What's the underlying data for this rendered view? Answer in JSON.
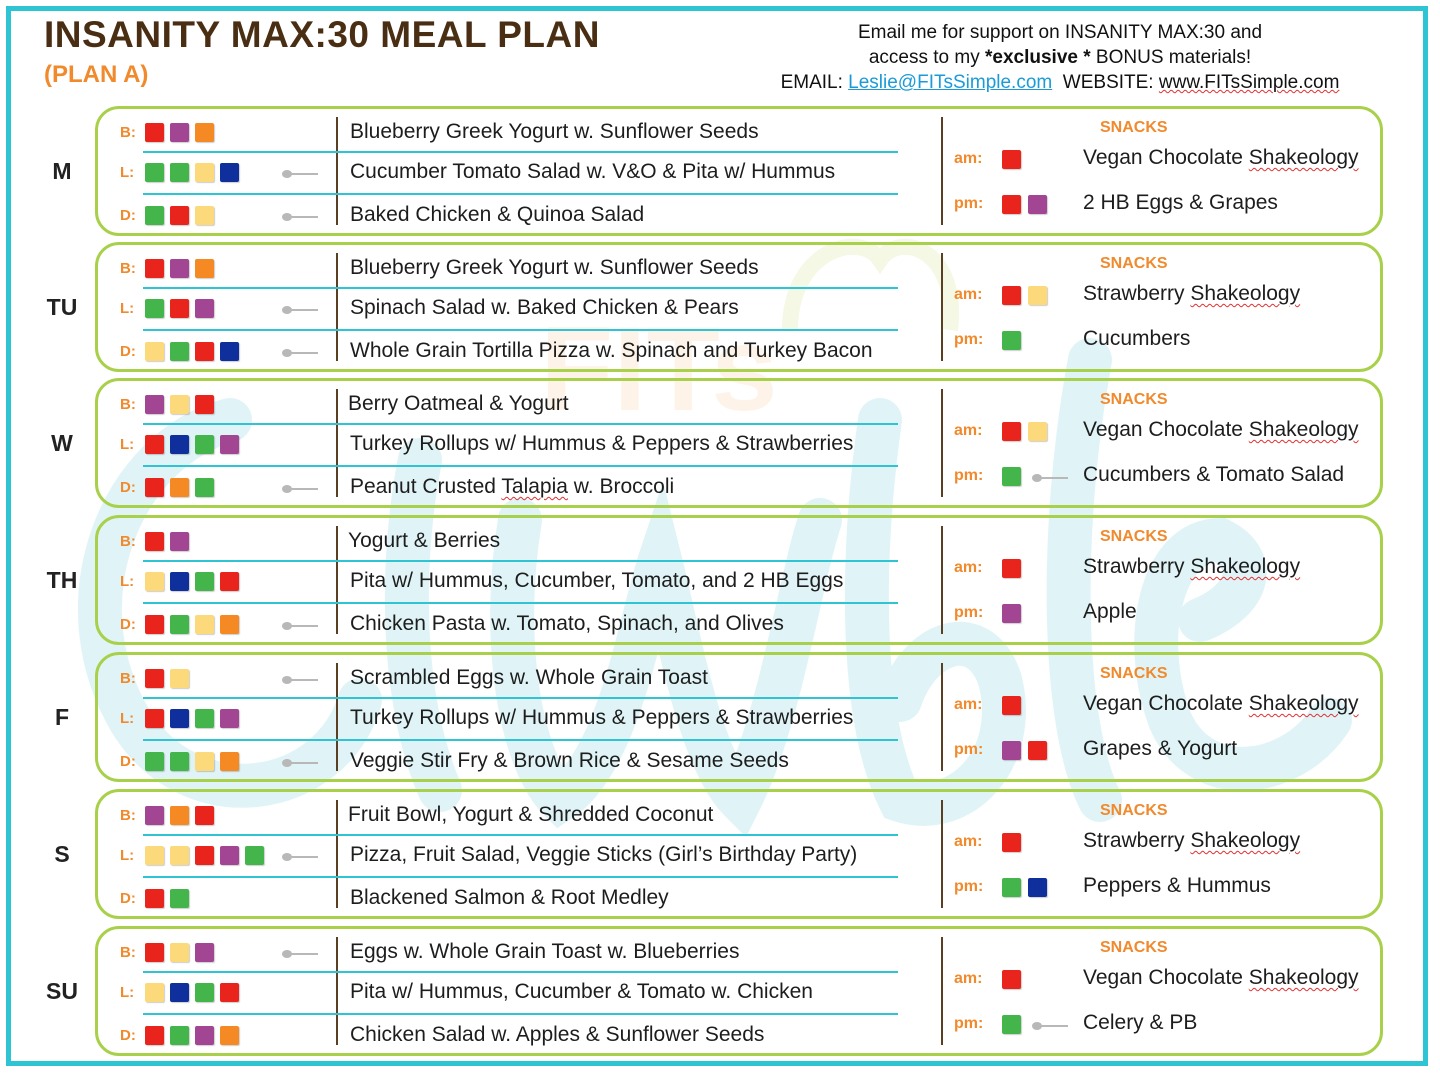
{
  "header": {
    "title": "INSANITY MAX:30 MEAL PLAN",
    "subtitle": "(PLAN A)",
    "contact_line1": "Email me for support on INSANITY MAX:30 and",
    "contact_line2_pre": "access to my ",
    "contact_line2_bold": "*exclusive *",
    "contact_line2_post": " BONUS materials!",
    "email_label": "EMAIL: ",
    "email": "Leslie@FITsSimple.com",
    "website_label": "WEBSITE: ",
    "website": "www.FITsSimple.com"
  },
  "colors": {
    "red": "#e8241c",
    "purple": "#a24592",
    "orange": "#f58a24",
    "green": "#44b54a",
    "yellow": "#fcd97a",
    "blue": "#0f2f9c",
    "border_green": "#a8d04a",
    "line_teal": "#2ec4d4",
    "accent_orange": "#f08a2c",
    "title_brown": "#4a2e14"
  },
  "watermark": {
    "text": "FITs Simple"
  },
  "days": [
    {
      "label": "M",
      "meals": [
        {
          "code": "B:",
          "squares": [
            "red",
            "purple",
            "orange"
          ],
          "spoon": false,
          "text": "Blueberry Greek Yogurt w. Sunflower Seeds"
        },
        {
          "code": "L:",
          "squares": [
            "green",
            "green",
            "yellow",
            "blue"
          ],
          "spoon": true,
          "text": "Cucumber Tomato Salad w. V&O & Pita w/ Hummus"
        },
        {
          "code": "D:",
          "squares": [
            "green",
            "red",
            "yellow"
          ],
          "spoon": true,
          "text": "Baked Chicken & Quinoa Salad"
        }
      ],
      "snacks_label": "SNACKS",
      "snacks": [
        {
          "code": "am:",
          "squares": [
            "red"
          ],
          "spoon": false,
          "text": "Vegan Chocolate Shakeology"
        },
        {
          "code": "pm:",
          "squares": [
            "red",
            "purple"
          ],
          "spoon": false,
          "text": "2 HB Eggs & Grapes"
        }
      ]
    },
    {
      "label": "TU",
      "meals": [
        {
          "code": "B:",
          "squares": [
            "red",
            "purple",
            "orange"
          ],
          "spoon": false,
          "text": "Blueberry Greek Yogurt w. Sunflower Seeds"
        },
        {
          "code": "L:",
          "squares": [
            "green",
            "red",
            "purple"
          ],
          "spoon": true,
          "text": "Spinach Salad w. Baked Chicken & Pears"
        },
        {
          "code": "D:",
          "squares": [
            "yellow",
            "green",
            "red",
            "blue"
          ],
          "spoon": true,
          "text": "Whole Grain Tortilla Pizza w. Spinach and Turkey Bacon"
        }
      ],
      "snacks_label": "SNACKS",
      "snacks": [
        {
          "code": "am:",
          "squares": [
            "red",
            "yellow"
          ],
          "spoon": false,
          "text": "Strawberry Shakeology"
        },
        {
          "code": "pm:",
          "squares": [
            "green"
          ],
          "spoon": false,
          "text": "Cucumbers"
        }
      ]
    },
    {
      "label": "W",
      "meals": [
        {
          "code": "B:",
          "squares": [
            "purple",
            "yellow",
            "red"
          ],
          "spoon": false,
          "text": "Berry Oatmeal & Yogurt"
        },
        {
          "code": "L:",
          "squares": [
            "red",
            "blue",
            "green",
            "purple"
          ],
          "spoon": false,
          "text": "Turkey Rollups w/ Hummus & Peppers  & Strawberries"
        },
        {
          "code": "D:",
          "squares": [
            "red",
            "orange",
            "green"
          ],
          "spoon": true,
          "text": "Peanut Crusted Talapia w. Broccoli"
        }
      ],
      "snacks_label": "SNACKS",
      "snacks": [
        {
          "code": "am:",
          "squares": [
            "red",
            "yellow"
          ],
          "spoon": false,
          "text": "Vegan Chocolate Shakeology"
        },
        {
          "code": "pm:",
          "squares": [
            "green"
          ],
          "spoon": true,
          "text": "Cucumbers & Tomato Salad"
        }
      ]
    },
    {
      "label": "TH",
      "meals": [
        {
          "code": "B:",
          "squares": [
            "red",
            "purple"
          ],
          "spoon": false,
          "text": "Yogurt & Berries"
        },
        {
          "code": "L:",
          "squares": [
            "yellow",
            "blue",
            "green",
            "red"
          ],
          "spoon": false,
          "text": "Pita w/ Hummus, Cucumber, Tomato, and 2 HB Eggs"
        },
        {
          "code": "D:",
          "squares": [
            "red",
            "green",
            "yellow",
            "orange"
          ],
          "spoon": true,
          "text": "Chicken Pasta w. Tomato, Spinach, and Olives"
        }
      ],
      "snacks_label": "SNACKS",
      "snacks": [
        {
          "code": "am:",
          "squares": [
            "red"
          ],
          "spoon": false,
          "text": "Strawberry Shakeology"
        },
        {
          "code": "pm:",
          "squares": [
            "purple"
          ],
          "spoon": false,
          "text": "Apple"
        }
      ]
    },
    {
      "label": "F",
      "meals": [
        {
          "code": "B:",
          "squares": [
            "red",
            "yellow"
          ],
          "spoon": true,
          "text": "Scrambled Eggs w. Whole Grain Toast"
        },
        {
          "code": "L:",
          "squares": [
            "red",
            "blue",
            "green",
            "purple"
          ],
          "spoon": false,
          "text": "Turkey Rollups w/ Hummus & Peppers  & Strawberries"
        },
        {
          "code": "D:",
          "squares": [
            "green",
            "green",
            "yellow",
            "orange"
          ],
          "spoon": true,
          "text": "Veggie Stir Fry & Brown Rice & Sesame Seeds"
        }
      ],
      "snacks_label": "SNACKS",
      "snacks": [
        {
          "code": "am:",
          "squares": [
            "red"
          ],
          "spoon": false,
          "text": "Vegan Chocolate Shakeology"
        },
        {
          "code": "pm:",
          "squares": [
            "purple",
            "red"
          ],
          "spoon": false,
          "text": "Grapes & Yogurt"
        }
      ]
    },
    {
      "label": "S",
      "meals": [
        {
          "code": "B:",
          "squares": [
            "purple",
            "orange",
            "red"
          ],
          "spoon": false,
          "text": "Fruit Bowl, Yogurt & Shredded Coconut"
        },
        {
          "code": "L:",
          "squares": [
            "yellow",
            "yellow",
            "red",
            "purple",
            "green"
          ],
          "spoon": true,
          "text": "Pizza, Fruit Salad, Veggie Sticks (Girl’s Birthday Party)"
        },
        {
          "code": "D:",
          "squares": [
            "red",
            "green"
          ],
          "spoon": false,
          "text": "Blackened Salmon & Root Medley"
        }
      ],
      "snacks_label": "SNACKS",
      "snacks": [
        {
          "code": "am:",
          "squares": [
            "red"
          ],
          "spoon": false,
          "text": "Strawberry Shakeology"
        },
        {
          "code": "pm:",
          "squares": [
            "green",
            "blue"
          ],
          "spoon": false,
          "text": "Peppers & Hummus"
        }
      ]
    },
    {
      "label": "SU",
      "meals": [
        {
          "code": "B:",
          "squares": [
            "red",
            "yellow",
            "purple"
          ],
          "spoon": true,
          "text": "Eggs w. Whole Grain Toast w. Blueberries"
        },
        {
          "code": "L:",
          "squares": [
            "yellow",
            "blue",
            "green",
            "red"
          ],
          "spoon": false,
          "text": "Pita w/ Hummus, Cucumber & Tomato w. Chicken"
        },
        {
          "code": "D:",
          "squares": [
            "red",
            "green",
            "purple",
            "orange"
          ],
          "spoon": false,
          "text": "Chicken Salad w. Apples & Sunflower Seeds"
        }
      ],
      "snacks_label": "SNACKS",
      "snacks": [
        {
          "code": "am:",
          "squares": [
            "red"
          ],
          "spoon": false,
          "text": "Vegan Chocolate Shakeology"
        },
        {
          "code": "pm:",
          "squares": [
            "green"
          ],
          "spoon": true,
          "text": "Celery & PB"
        }
      ]
    }
  ]
}
